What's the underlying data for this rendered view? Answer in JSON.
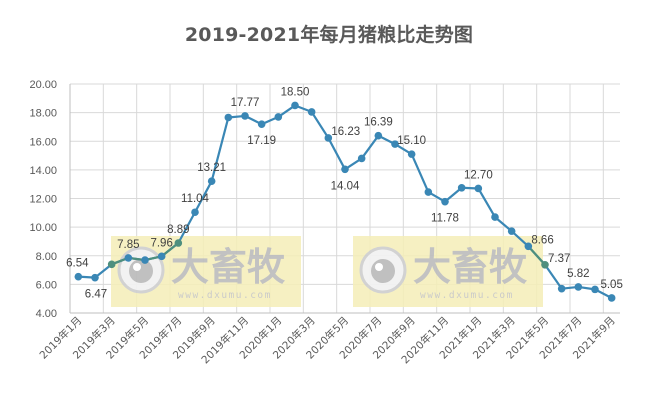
{
  "chart_data": {
    "type": "line",
    "title": "2019-2021年每月猪粮比走势图",
    "xlabel": "",
    "ylabel": "",
    "ylim": [
      4,
      20
    ],
    "yticks": [
      "4.00",
      "6.00",
      "8.00",
      "10.00",
      "12.00",
      "14.00",
      "16.00",
      "18.00",
      "20.00"
    ],
    "grid": true,
    "legend": null,
    "categories": [
      "2019年1月",
      "2019年2月",
      "2019年3月",
      "2019年4月",
      "2019年5月",
      "2019年6月",
      "2019年7月",
      "2019年8月",
      "2019年9月",
      "2019年10月",
      "2019年11月",
      "2019年12月",
      "2020年1月",
      "2020年2月",
      "2020年3月",
      "2020年4月",
      "2020年5月",
      "2020年6月",
      "2020年7月",
      "2020年8月",
      "2020年9月",
      "2020年10月",
      "2020年11月",
      "2020年12月",
      "2021年1月",
      "2021年2月",
      "2021年3月",
      "2021年4月",
      "2021年5月",
      "2021年6月",
      "2021年7月",
      "2021年8月",
      "2021年9月"
    ],
    "xtick_labels": [
      "2019年1月",
      "2019年3月",
      "2019年5月",
      "2019年7月",
      "2019年9月",
      "2019年11月",
      "2020年1月",
      "2020年3月",
      "2020年5月",
      "2020年7月",
      "2020年9月",
      "2020年11月",
      "2021年1月",
      "2021年3月",
      "2021年5月",
      "2021年7月",
      "2021年9月"
    ],
    "series": [
      {
        "name": "猪粮比",
        "color": "#3a87b5",
        "values": [
          6.54,
          6.47,
          7.4,
          7.85,
          7.7,
          7.96,
          8.89,
          11.04,
          13.21,
          17.66,
          17.77,
          17.19,
          17.7,
          18.5,
          18.05,
          16.23,
          14.04,
          14.8,
          16.39,
          15.8,
          15.1,
          12.45,
          11.78,
          12.75,
          12.7,
          10.7,
          9.72,
          8.66,
          7.37,
          5.7,
          5.82,
          5.65,
          5.05
        ]
      }
    ],
    "data_labels": [
      {
        "index": 0,
        "text": "6.54",
        "pos": "above"
      },
      {
        "index": 1,
        "text": "6.47",
        "pos": "below"
      },
      {
        "index": 3,
        "text": "7.85",
        "pos": "above"
      },
      {
        "index": 5,
        "text": "7.96",
        "pos": "above"
      },
      {
        "index": 6,
        "text": "8.89",
        "pos": "above"
      },
      {
        "index": 7,
        "text": "11.04",
        "pos": "above"
      },
      {
        "index": 8,
        "text": "13.21",
        "pos": "above"
      },
      {
        "index": 10,
        "text": "17.77",
        "pos": "above"
      },
      {
        "index": 11,
        "text": "17.19",
        "pos": "below"
      },
      {
        "index": 13,
        "text": "18.50",
        "pos": "above"
      },
      {
        "index": 15,
        "text": "16.23",
        "pos": "right"
      },
      {
        "index": 16,
        "text": "14.04",
        "pos": "below"
      },
      {
        "index": 18,
        "text": "16.39",
        "pos": "above"
      },
      {
        "index": 20,
        "text": "15.10",
        "pos": "above"
      },
      {
        "index": 22,
        "text": "11.78",
        "pos": "below"
      },
      {
        "index": 24,
        "text": "12.70",
        "pos": "above"
      },
      {
        "index": 27,
        "text": "8.66",
        "pos": "right"
      },
      {
        "index": 28,
        "text": "7.37",
        "pos": "right"
      },
      {
        "index": 30,
        "text": "5.82",
        "pos": "above"
      },
      {
        "index": 32,
        "text": "5.05",
        "pos": "above"
      }
    ]
  },
  "watermark": {
    "text": "大畜牧",
    "url": "www.dxumu.com",
    "bg_color": "#f5eeb8"
  },
  "colors": {
    "line": "#3a87b5",
    "line_in_watermark": "#4e8f7e",
    "grid": "#d9d9d9",
    "axis": "#bfbfbf",
    "text": "#595959"
  }
}
